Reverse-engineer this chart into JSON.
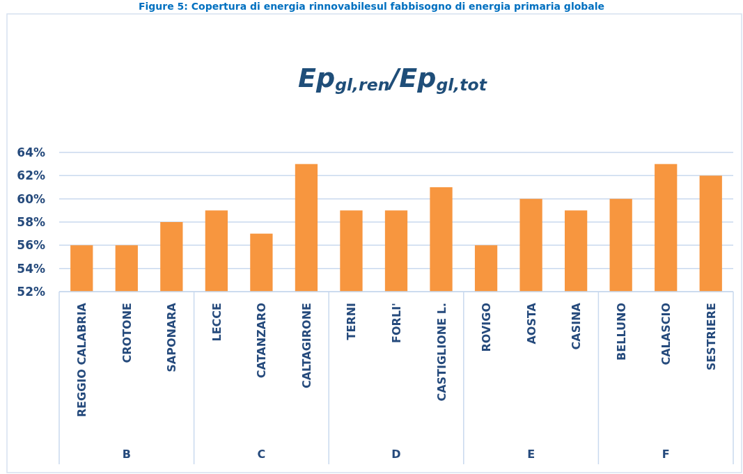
{
  "chart_data": {
    "type": "bar",
    "title": "Ep$_{gl,ren}$/Ep$_{gl,tot}$",
    "categories": [
      "REGGIO CALABRIA",
      "CROTONE",
      "SAPONARA",
      "LECCE",
      "CATANZARO",
      "CALTAGIRONE",
      "TERNI",
      "FORLI'",
      "CASTIGLIONE L.",
      "ROVIGO",
      "AOSTA",
      "CASINA",
      "BELLUNO",
      "CALASCIO",
      "SESTRIERE"
    ],
    "values": [
      0.56,
      0.56,
      0.58,
      0.59,
      0.57,
      0.63,
      0.59,
      0.59,
      0.61,
      0.56,
      0.6,
      0.59,
      0.6,
      0.63,
      0.62
    ],
    "color": "#f7963f",
    "ylim": [
      0.52,
      0.64
    ],
    "yticks": [
      {
        "value": 0.52,
        "label": "52%"
      },
      {
        "value": 0.54,
        "label": "54%"
      },
      {
        "value": 0.56,
        "label": "56%"
      },
      {
        "value": 0.58,
        "label": "58%"
      },
      {
        "value": 0.6,
        "label": "60%"
      },
      {
        "value": 0.62,
        "label": "62%"
      },
      {
        "value": 0.64,
        "label": "64%"
      }
    ],
    "grid": "y",
    "annotations": [
      "Figure 5: Copertura di energia rinnovabilesul fabbisogno di energia primaria globale",
      "B",
      "C",
      "D",
      "E",
      "F"
    ]
  }
}
